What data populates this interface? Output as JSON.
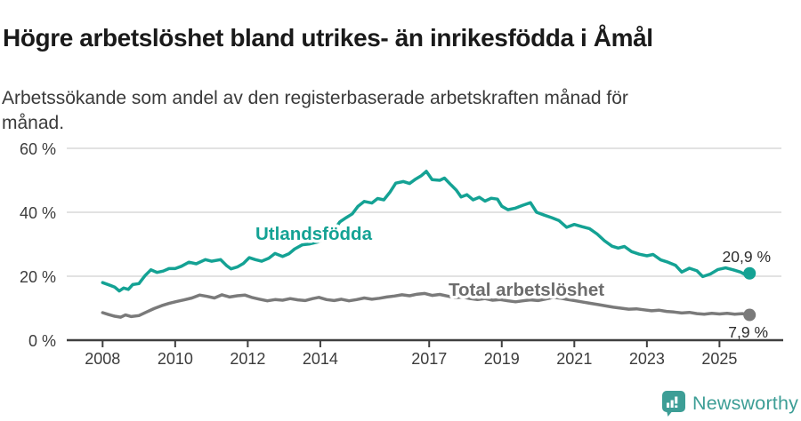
{
  "header": {
    "title": "Högre arbetslöshet bland utrikes- än inrikesfödda i Åmål",
    "subtitle": "Arbetssökande som andel av den registerbaserade arbetskraften månad för\nmånad."
  },
  "chart_data": {
    "type": "line",
    "title": "Högre arbetslöshet bland utrikes- än inrikesfödda i Åmål",
    "subtitle": "Arbetssökande som andel av den registerbaserade arbetskraften månad för månad.",
    "grid": "horizontal-only",
    "x_axis": {
      "ticks": [
        {
          "label": "2008",
          "year": 2008
        },
        {
          "label": "2010",
          "year": 2010
        },
        {
          "label": "2012",
          "year": 2012
        },
        {
          "label": "2014",
          "year": 2014
        },
        {
          "label": "2017",
          "year": 2017
        },
        {
          "label": "2019",
          "year": 2019
        },
        {
          "label": "2021",
          "year": 2021
        },
        {
          "label": "2023",
          "year": 2023
        },
        {
          "label": "2025",
          "year": 2025
        }
      ],
      "range": [
        2008.0,
        2025.83
      ]
    },
    "y_axis": {
      "ticks": [
        {
          "label": "0 %",
          "value": 0
        },
        {
          "label": "20 %",
          "value": 20
        },
        {
          "label": "40 %",
          "value": 40
        },
        {
          "label": "60 %",
          "value": 60
        }
      ],
      "ylim": [
        0,
        60
      ],
      "unit": "%"
    },
    "series": [
      {
        "name": "Utlandsfödda",
        "color": "#14a294",
        "end_label": "20,9 %",
        "end_value": 20.9,
        "points": [
          [
            2008.0,
            18.0
          ],
          [
            2008.17,
            17.3
          ],
          [
            2008.33,
            16.6
          ],
          [
            2008.46,
            15.4
          ],
          [
            2008.58,
            16.3
          ],
          [
            2008.71,
            15.9
          ],
          [
            2008.83,
            17.4
          ],
          [
            2009.0,
            17.7
          ],
          [
            2009.17,
            20.2
          ],
          [
            2009.33,
            22.0
          ],
          [
            2009.5,
            21.2
          ],
          [
            2009.67,
            21.6
          ],
          [
            2009.83,
            22.4
          ],
          [
            2010.0,
            22.4
          ],
          [
            2010.17,
            23.1
          ],
          [
            2010.38,
            24.4
          ],
          [
            2010.58,
            23.9
          ],
          [
            2010.83,
            25.2
          ],
          [
            2011.0,
            24.7
          ],
          [
            2011.25,
            25.2
          ],
          [
            2011.42,
            23.3
          ],
          [
            2011.54,
            22.3
          ],
          [
            2011.71,
            22.9
          ],
          [
            2011.88,
            24.0
          ],
          [
            2012.04,
            25.8
          ],
          [
            2012.21,
            25.2
          ],
          [
            2012.38,
            24.7
          ],
          [
            2012.58,
            25.6
          ],
          [
            2012.75,
            27.1
          ],
          [
            2012.96,
            26.2
          ],
          [
            2013.13,
            27.0
          ],
          [
            2013.29,
            28.5
          ],
          [
            2013.5,
            29.8
          ],
          [
            2013.71,
            30.1
          ],
          [
            2013.92,
            30.7
          ],
          [
            2014.13,
            31.8
          ],
          [
            2014.33,
            33.6
          ],
          [
            2014.54,
            37.0
          ],
          [
            2014.71,
            38.3
          ],
          [
            2014.88,
            39.5
          ],
          [
            2015.04,
            41.9
          ],
          [
            2015.21,
            43.4
          ],
          [
            2015.42,
            42.9
          ],
          [
            2015.58,
            44.3
          ],
          [
            2015.75,
            43.9
          ],
          [
            2015.92,
            46.3
          ],
          [
            2016.08,
            49.1
          ],
          [
            2016.29,
            49.6
          ],
          [
            2016.46,
            49.0
          ],
          [
            2016.63,
            50.4
          ],
          [
            2016.79,
            51.5
          ],
          [
            2016.92,
            52.8
          ],
          [
            2017.08,
            50.2
          ],
          [
            2017.29,
            50.0
          ],
          [
            2017.42,
            50.7
          ],
          [
            2017.58,
            48.8
          ],
          [
            2017.75,
            46.9
          ],
          [
            2017.88,
            44.8
          ],
          [
            2018.04,
            45.5
          ],
          [
            2018.21,
            43.9
          ],
          [
            2018.38,
            44.7
          ],
          [
            2018.54,
            43.5
          ],
          [
            2018.71,
            44.4
          ],
          [
            2018.88,
            44.1
          ],
          [
            2019.0,
            41.9
          ],
          [
            2019.17,
            40.8
          ],
          [
            2019.38,
            41.3
          ],
          [
            2019.58,
            42.2
          ],
          [
            2019.79,
            43.0
          ],
          [
            2019.96,
            40.0
          ],
          [
            2020.17,
            39.1
          ],
          [
            2020.38,
            38.3
          ],
          [
            2020.58,
            37.4
          ],
          [
            2020.79,
            35.3
          ],
          [
            2021.0,
            36.2
          ],
          [
            2021.21,
            35.5
          ],
          [
            2021.42,
            34.9
          ],
          [
            2021.63,
            33.2
          ],
          [
            2021.83,
            31.1
          ],
          [
            2022.04,
            29.4
          ],
          [
            2022.21,
            28.8
          ],
          [
            2022.38,
            29.3
          ],
          [
            2022.58,
            27.7
          ],
          [
            2022.79,
            26.9
          ],
          [
            2023.0,
            26.4
          ],
          [
            2023.17,
            26.8
          ],
          [
            2023.38,
            25.1
          ],
          [
            2023.58,
            24.4
          ],
          [
            2023.79,
            23.4
          ],
          [
            2023.96,
            21.3
          ],
          [
            2024.17,
            22.5
          ],
          [
            2024.38,
            21.7
          ],
          [
            2024.54,
            19.9
          ],
          [
            2024.75,
            20.7
          ],
          [
            2024.96,
            22.1
          ],
          [
            2025.17,
            22.6
          ],
          [
            2025.38,
            22.0
          ],
          [
            2025.58,
            21.3
          ],
          [
            2025.71,
            20.5
          ],
          [
            2025.83,
            20.9
          ]
        ]
      },
      {
        "name": "Total arbetslöshet",
        "color": "#7a7a7a",
        "end_label": "7,9 %",
        "end_value": 7.9,
        "points": [
          [
            2008.0,
            8.6
          ],
          [
            2008.17,
            8.0
          ],
          [
            2008.33,
            7.5
          ],
          [
            2008.5,
            7.2
          ],
          [
            2008.63,
            7.9
          ],
          [
            2008.79,
            7.4
          ],
          [
            2009.0,
            7.7
          ],
          [
            2009.21,
            8.8
          ],
          [
            2009.42,
            9.9
          ],
          [
            2009.63,
            10.8
          ],
          [
            2009.83,
            11.5
          ],
          [
            2010.04,
            12.1
          ],
          [
            2010.25,
            12.6
          ],
          [
            2010.46,
            13.2
          ],
          [
            2010.67,
            14.1
          ],
          [
            2010.88,
            13.7
          ],
          [
            2011.08,
            13.2
          ],
          [
            2011.29,
            14.2
          ],
          [
            2011.5,
            13.5
          ],
          [
            2011.71,
            13.9
          ],
          [
            2011.92,
            14.1
          ],
          [
            2012.13,
            13.3
          ],
          [
            2012.33,
            12.8
          ],
          [
            2012.54,
            12.3
          ],
          [
            2012.75,
            12.7
          ],
          [
            2012.96,
            12.5
          ],
          [
            2013.17,
            13.0
          ],
          [
            2013.38,
            12.6
          ],
          [
            2013.58,
            12.4
          ],
          [
            2013.79,
            13.0
          ],
          [
            2013.96,
            13.4
          ],
          [
            2014.17,
            12.7
          ],
          [
            2014.38,
            12.4
          ],
          [
            2014.58,
            12.8
          ],
          [
            2014.79,
            12.3
          ],
          [
            2015.0,
            12.7
          ],
          [
            2015.21,
            13.2
          ],
          [
            2015.42,
            12.8
          ],
          [
            2015.63,
            13.1
          ],
          [
            2015.83,
            13.5
          ],
          [
            2016.04,
            13.8
          ],
          [
            2016.25,
            14.2
          ],
          [
            2016.46,
            13.9
          ],
          [
            2016.67,
            14.4
          ],
          [
            2016.88,
            14.6
          ],
          [
            2017.08,
            14.0
          ],
          [
            2017.29,
            14.3
          ],
          [
            2017.5,
            13.8
          ],
          [
            2017.71,
            13.3
          ],
          [
            2017.92,
            13.5
          ],
          [
            2018.13,
            13.0
          ],
          [
            2018.33,
            12.7
          ],
          [
            2018.54,
            13.0
          ],
          [
            2018.75,
            12.5
          ],
          [
            2018.96,
            12.7
          ],
          [
            2019.17,
            12.3
          ],
          [
            2019.38,
            12.0
          ],
          [
            2019.58,
            12.3
          ],
          [
            2019.79,
            12.6
          ],
          [
            2020.0,
            12.4
          ],
          [
            2020.21,
            12.9
          ],
          [
            2020.42,
            13.4
          ],
          [
            2020.63,
            13.1
          ],
          [
            2020.83,
            12.7
          ],
          [
            2021.04,
            12.3
          ],
          [
            2021.25,
            11.9
          ],
          [
            2021.46,
            11.5
          ],
          [
            2021.67,
            11.1
          ],
          [
            2021.88,
            10.7
          ],
          [
            2022.08,
            10.3
          ],
          [
            2022.29,
            10.0
          ],
          [
            2022.5,
            9.7
          ],
          [
            2022.71,
            9.8
          ],
          [
            2022.92,
            9.5
          ],
          [
            2023.13,
            9.2
          ],
          [
            2023.33,
            9.4
          ],
          [
            2023.54,
            9.0
          ],
          [
            2023.75,
            8.8
          ],
          [
            2023.96,
            8.5
          ],
          [
            2024.17,
            8.7
          ],
          [
            2024.38,
            8.3
          ],
          [
            2024.58,
            8.1
          ],
          [
            2024.79,
            8.4
          ],
          [
            2025.0,
            8.2
          ],
          [
            2025.21,
            8.4
          ],
          [
            2025.42,
            8.1
          ],
          [
            2025.63,
            8.3
          ],
          [
            2025.83,
            7.9
          ]
        ]
      }
    ],
    "legend_position": "inline-labels"
  },
  "footer": {
    "brand": "Newsworthy",
    "brand_color": "#3d9e96",
    "logo_icon": "speech-bubble-bar-chart-icon"
  }
}
